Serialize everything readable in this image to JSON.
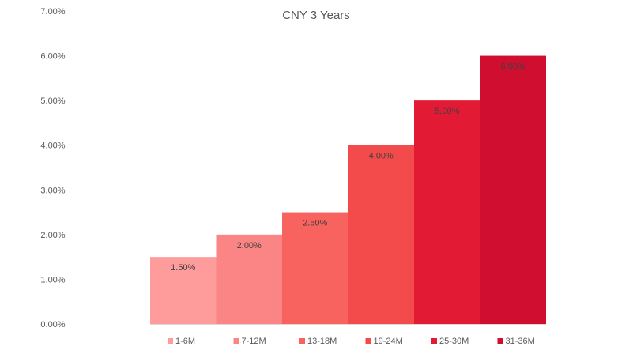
{
  "chart_data": {
    "type": "bar",
    "title": "CNY 3 Years",
    "xlabel": "",
    "ylabel": "",
    "categories": [
      "1-6M",
      "7-12M",
      "13-18M",
      "19-24M",
      "25-30M",
      "31-36M"
    ],
    "values": [
      1.5,
      2.0,
      2.5,
      4.0,
      5.0,
      6.0
    ],
    "data_labels": [
      "1.50%",
      "2.00%",
      "2.50%",
      "4.00%",
      "5.00%",
      "6.00%"
    ],
    "colors": [
      "#fe9c9c",
      "#fb8585",
      "#f8625f",
      "#f34b4b",
      "#e31a34",
      "#cf0e30"
    ],
    "ylim": [
      0,
      7
    ],
    "yticks": [
      0,
      1,
      2,
      3,
      4,
      5,
      6,
      7
    ],
    "ytick_labels": [
      "0.00%",
      "1.00%",
      "2.00%",
      "3.00%",
      "4.00%",
      "5.00%",
      "6.00%",
      "7.00%"
    ],
    "legend_position": "bottom",
    "grid": false
  }
}
